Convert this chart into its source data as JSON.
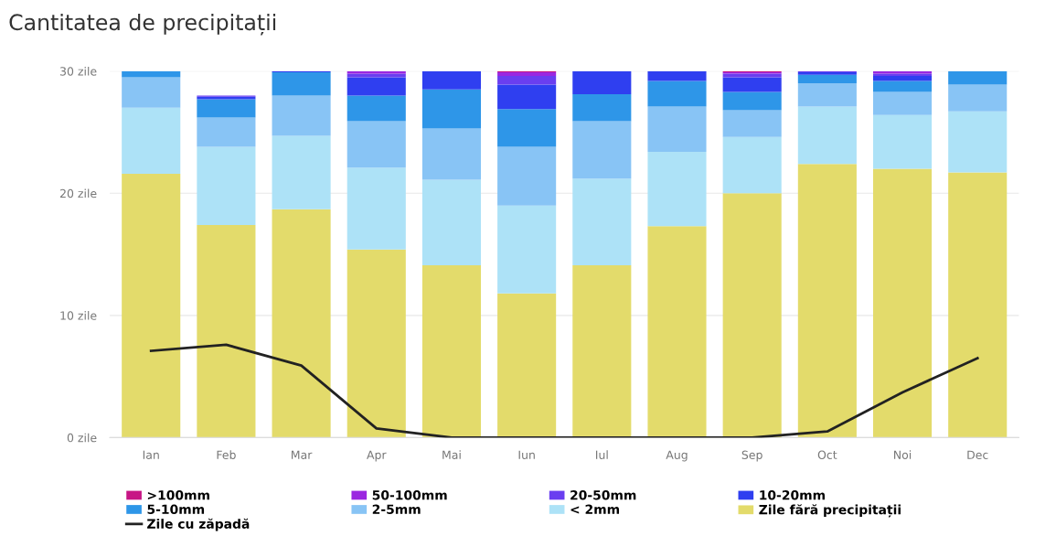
{
  "chart_data": {
    "type": "bar",
    "title": "Cantitatea de precipitații",
    "stacked": true,
    "categories": [
      "Ian",
      "Feb",
      "Mar",
      "Apr",
      "Mai",
      "Iun",
      "Iul",
      "Aug",
      "Sep",
      "Oct",
      "Noi",
      "Dec"
    ],
    "series": [
      {
        "name": "Zile fără precipitații",
        "color": "#e3db6b",
        "values": [
          21.6,
          17.4,
          18.7,
          15.4,
          14.1,
          11.8,
          14.1,
          17.3,
          20.0,
          22.4,
          22.0,
          21.7
        ]
      },
      {
        "name": "< 2mm",
        "color": "#ade2f7",
        "values": [
          5.4,
          6.4,
          6.0,
          6.7,
          7.0,
          7.2,
          7.1,
          6.1,
          4.6,
          4.7,
          4.4,
          5.0
        ]
      },
      {
        "name": "2-5mm",
        "color": "#88c4f5",
        "values": [
          2.5,
          2.4,
          3.3,
          3.8,
          4.2,
          4.8,
          4.7,
          3.7,
          2.2,
          1.9,
          1.9,
          2.2
        ]
      },
      {
        "name": "5-10mm",
        "color": "#2e96e8",
        "values": [
          0.5,
          1.5,
          1.9,
          2.1,
          3.2,
          3.1,
          2.2,
          2.1,
          1.5,
          0.7,
          0.9,
          1.1
        ]
      },
      {
        "name": "10-20mm",
        "color": "#2f3ff0",
        "values": [
          null,
          0.2,
          0.1,
          1.5,
          1.5,
          2.0,
          1.9,
          0.8,
          1.2,
          0.2,
          0.4,
          null
        ]
      },
      {
        "name": "20-50mm",
        "color": "#6a3ef0",
        "values": [
          null,
          0.1,
          null,
          0.3,
          null,
          0.7,
          null,
          null,
          0.3,
          0.1,
          0.2,
          null
        ]
      },
      {
        "name": "50-100mm",
        "color": "#9b27e0",
        "values": [
          null,
          null,
          null,
          0.2,
          null,
          0.3,
          null,
          null,
          0.1,
          null,
          0.2,
          null
        ]
      },
      {
        "name": ">100mm",
        "color": "#c71585",
        "values": [
          null,
          null,
          null,
          null,
          null,
          0.1,
          null,
          null,
          0.1,
          null,
          null,
          null
        ]
      },
      {
        "name": "Zile cu zăpadă",
        "type": "line",
        "color": "#222222",
        "values": [
          7.1,
          7.6,
          5.9,
          0.75,
          0,
          0,
          0,
          0,
          0,
          0.5,
          3.7,
          6.5
        ]
      }
    ],
    "ylim": [
      0,
      30
    ],
    "yticks": [
      {
        "value": 0,
        "label": "0 zile"
      },
      {
        "value": 10,
        "label": "10 zile"
      },
      {
        "value": 20,
        "label": "20 zile"
      },
      {
        "value": 30,
        "label": "30 zile"
      }
    ],
    "grid": "y",
    "legend": "bottom",
    "marker": "none"
  }
}
